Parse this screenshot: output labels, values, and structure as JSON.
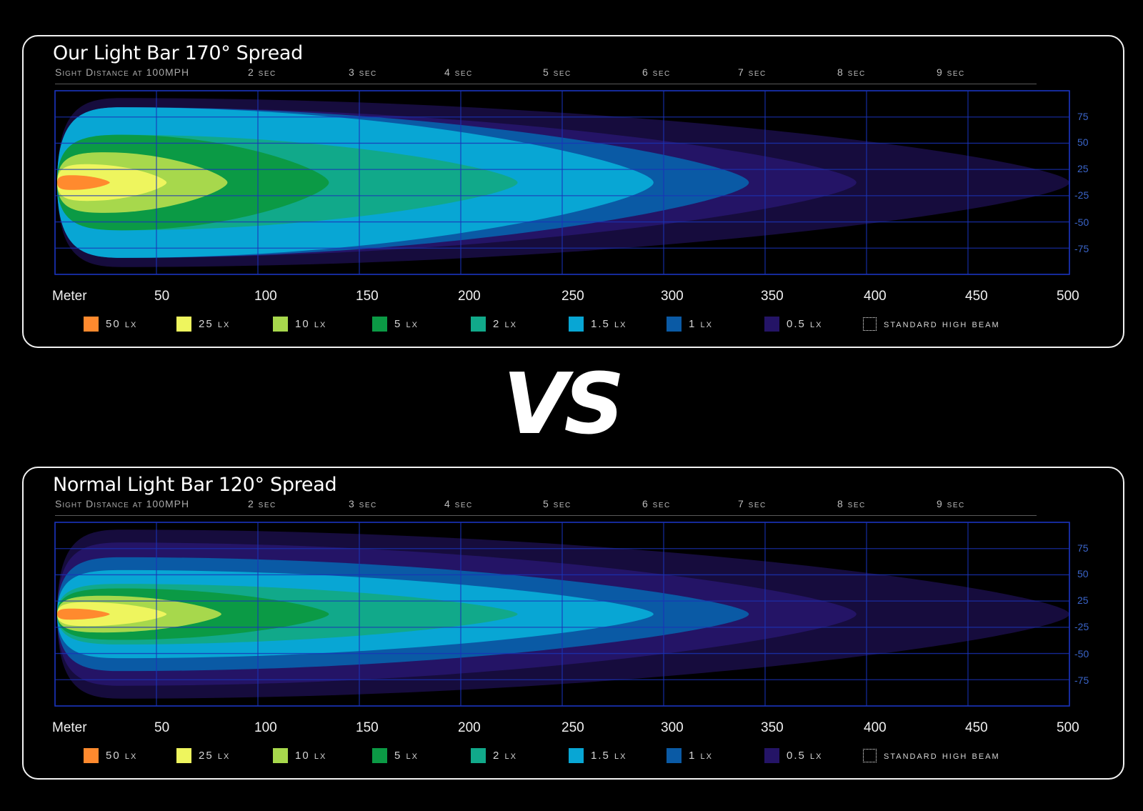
{
  "colors": {
    "lx50": "#ff8a2e",
    "lx25": "#eef55e",
    "lx10": "#a7d84c",
    "lx5": "#0b9a45",
    "lx2": "#11a98a",
    "lx1_5": "#08a6d4",
    "lx1": "#0a5aa5",
    "lx0_5": "#241466",
    "outer": "#160c3d",
    "grid": "#1a33b8"
  },
  "vs_text": "VS",
  "chart_data": [
    {
      "type": "area",
      "title": "Our Light Bar  170°  Spread",
      "sight_label": "Sight Distance at 100MPH",
      "sec_labels": [
        "2 sec",
        "3 sec",
        "4 sec",
        "5 sec",
        "6 sec",
        "7 sec",
        "8 sec",
        "9 sec"
      ],
      "xlabel": "Meter",
      "x_ticks": [
        "50",
        "100",
        "150",
        "200",
        "250",
        "300",
        "350",
        "400",
        "450",
        "500"
      ],
      "y_ticks": [
        "75",
        "50",
        "25",
        "-25",
        "-50",
        "-75"
      ],
      "xlim": [
        0,
        500
      ],
      "ylim": [
        -100,
        100
      ],
      "grid": true,
      "legend_position": "bottom",
      "legend": [
        "50 lx",
        "25 lx",
        "10 lx",
        "5 lx",
        "2 lx",
        "1.5 lx",
        "1 lx",
        "0.5 lx",
        "standard high beam"
      ],
      "contours": [
        {
          "lux": "outer",
          "reach_m": 500,
          "half_width_m": 92
        },
        {
          "lux": "0.5",
          "reach_m": 395,
          "half_width_m": 82
        },
        {
          "lux": "1",
          "reach_m": 342,
          "half_width_m": 82
        },
        {
          "lux": "1.5",
          "reach_m": 295,
          "half_width_m": 82
        },
        {
          "lux": "2",
          "reach_m": 228,
          "half_width_m": 52
        },
        {
          "lux": "5",
          "reach_m": 135,
          "half_width_m": 52
        },
        {
          "lux": "10",
          "reach_m": 85,
          "half_width_m": 33
        },
        {
          "lux": "25",
          "reach_m": 55,
          "half_width_m": 20
        },
        {
          "lux": "50",
          "reach_m": 27,
          "half_width_m": 8
        }
      ]
    },
    {
      "type": "area",
      "title": "Normal Light Bar  120°  Spread",
      "sight_label": "Sight Distance at 100MPH",
      "sec_labels": [
        "2 sec",
        "3 sec",
        "4 sec",
        "5 sec",
        "6 sec",
        "7 sec",
        "8 sec",
        "9 sec"
      ],
      "xlabel": "Meter",
      "x_ticks": [
        "50",
        "100",
        "150",
        "200",
        "250",
        "300",
        "350",
        "400",
        "450",
        "500"
      ],
      "y_ticks": [
        "75",
        "50",
        "25",
        "-25",
        "-50",
        "-75"
      ],
      "xlim": [
        0,
        500
      ],
      "ylim": [
        -100,
        100
      ],
      "grid": true,
      "legend_position": "bottom",
      "legend": [
        "50 lx",
        "25 lx",
        "10 lx",
        "5 lx",
        "2 lx",
        "1.5 lx",
        "1 lx",
        "0.5 lx",
        "standard high beam"
      ],
      "contours": [
        {
          "lux": "outer",
          "reach_m": 500,
          "half_width_m": 92
        },
        {
          "lux": "0.5",
          "reach_m": 395,
          "half_width_m": 78
        },
        {
          "lux": "1",
          "reach_m": 342,
          "half_width_m": 62
        },
        {
          "lux": "1.5",
          "reach_m": 295,
          "half_width_m": 48
        },
        {
          "lux": "2",
          "reach_m": 228,
          "half_width_m": 33
        },
        {
          "lux": "5",
          "reach_m": 135,
          "half_width_m": 28
        },
        {
          "lux": "10",
          "reach_m": 82,
          "half_width_m": 20
        },
        {
          "lux": "25",
          "reach_m": 55,
          "half_width_m": 13
        },
        {
          "lux": "50",
          "reach_m": 27,
          "half_width_m": 6
        }
      ]
    }
  ]
}
